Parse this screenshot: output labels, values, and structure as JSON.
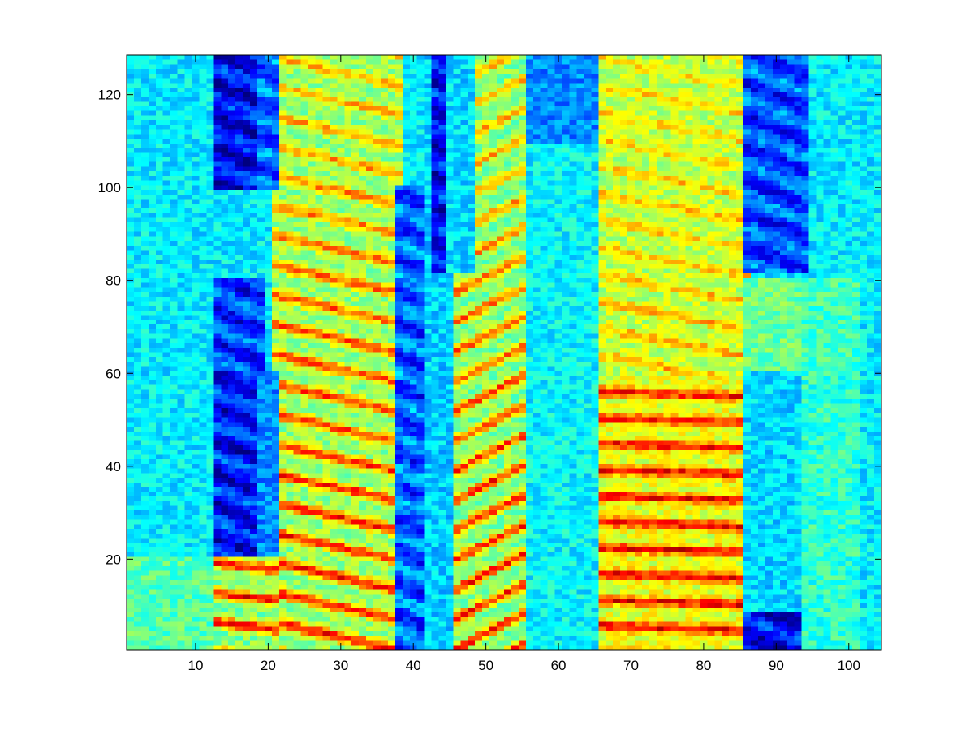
{
  "chart_data": {
    "type": "heatmap",
    "title": "",
    "xlabel": "",
    "ylabel": "",
    "xlim": [
      0.5,
      104.5
    ],
    "ylim": [
      0.5,
      128.5
    ],
    "y_direction": "up",
    "grid": false,
    "colormap": "jet",
    "n_columns": 104,
    "n_rows": 128,
    "x_ticks": [
      10,
      20,
      30,
      40,
      50,
      60,
      70,
      80,
      90,
      100
    ],
    "x_tick_labels": [
      "10",
      "20",
      "30",
      "40",
      "50",
      "60",
      "70",
      "80",
      "90",
      "100"
    ],
    "y_ticks": [
      20,
      40,
      60,
      80,
      100,
      120
    ],
    "y_tick_labels": [
      "20",
      "40",
      "60",
      "80",
      "100",
      "120"
    ],
    "value_range": [
      0,
      1
    ],
    "background_level": 0.36,
    "blocks": [
      {
        "x": [
          13,
          19
        ],
        "y": [
          100,
          128
        ],
        "level": 0.12
      },
      {
        "x": [
          19,
          21
        ],
        "y": [
          100,
          128
        ],
        "level": 0.22
      },
      {
        "x": [
          13,
          19
        ],
        "y": [
          60,
          80
        ],
        "level": 0.18
      },
      {
        "x": [
          13,
          19
        ],
        "y": [
          21,
          60
        ],
        "level": 0.14
      },
      {
        "x": [
          19,
          21
        ],
        "y": [
          21,
          60
        ],
        "level": 0.26
      },
      {
        "x": [
          38,
          41
        ],
        "y": [
          1,
          100
        ],
        "level": 0.22
      },
      {
        "x": [
          42,
          45
        ],
        "y": [
          1,
          128
        ],
        "level": 0.33
      },
      {
        "x": [
          43,
          44
        ],
        "y": [
          82,
          128
        ],
        "level": 0.12
      },
      {
        "x": [
          45,
          48
        ],
        "y": [
          82,
          128
        ],
        "level": 0.34
      },
      {
        "x": [
          56,
          65
        ],
        "y": [
          1,
          128
        ],
        "level": 0.37
      },
      {
        "x": [
          56,
          65
        ],
        "y": [
          110,
          128
        ],
        "level": 0.26
      },
      {
        "x": [
          86,
          94
        ],
        "y": [
          82,
          128
        ],
        "level": 0.2
      },
      {
        "x": [
          86,
          94
        ],
        "y": [
          60,
          80
        ],
        "level": 0.48
      },
      {
        "x": [
          86,
          94
        ],
        "y": [
          8,
          60
        ],
        "level": 0.34
      },
      {
        "x": [
          86,
          94
        ],
        "y": [
          1,
          8
        ],
        "level": 0.12
      },
      {
        "x": [
          94,
          101
        ],
        "y": [
          60,
          80
        ],
        "level": 0.44
      },
      {
        "x": [
          94,
          101
        ],
        "y": [
          1,
          60
        ],
        "level": 0.42
      },
      {
        "x": [
          1,
          12
        ],
        "y": [
          1,
          20
        ],
        "level": 0.46
      }
    ],
    "harmonic_regions": [
      {
        "x": [
          21,
          38
        ],
        "y": [
          1,
          128
        ],
        "base": 0.52,
        "peak": 0.86,
        "spacing": 6.4,
        "slope": 0.35
      },
      {
        "x": [
          13,
          21
        ],
        "y": [
          1,
          20
        ],
        "base": 0.5,
        "peak": 0.88,
        "spacing": 6.4,
        "slope": 0.2
      },
      {
        "x": [
          45,
          56
        ],
        "y": [
          1,
          128
        ],
        "base": 0.5,
        "peak": 0.86,
        "spacing": 6.4,
        "slope": -0.8
      },
      {
        "x": [
          66,
          86
        ],
        "y": [
          1,
          60
        ],
        "base": 0.6,
        "peak": 0.9,
        "spacing": 5.6,
        "slope": 0.05
      },
      {
        "x": [
          66,
          86
        ],
        "y": [
          60,
          128
        ],
        "base": 0.56,
        "peak": 0.74,
        "spacing": 5.8,
        "slope": 0.3
      }
    ]
  }
}
